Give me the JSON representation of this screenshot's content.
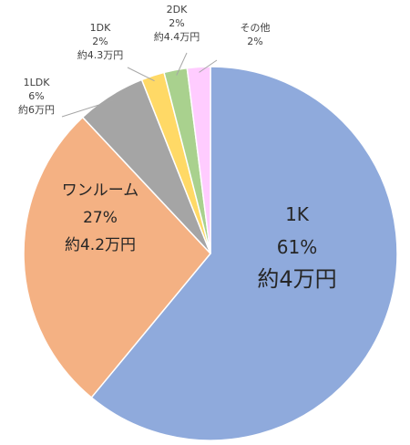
{
  "chart_data": {
    "type": "pie",
    "title": "",
    "legend": "none",
    "slices": [
      {
        "name": "1K",
        "percent_label": "61%",
        "price_label": "約4万円",
        "value": 61,
        "color": "#8FAADC"
      },
      {
        "name": "ワンルーム",
        "percent_label": "27%",
        "price_label": "約4.2万円",
        "value": 27,
        "color": "#F4B183"
      },
      {
        "name": "1LDK",
        "percent_label": "6%",
        "price_label": "約6万円",
        "value": 6,
        "color": "#A5A5A5"
      },
      {
        "name": "1DK",
        "percent_label": "2%",
        "price_label": "約4.3万円",
        "value": 2,
        "color": "#FFD966"
      },
      {
        "name": "2DK",
        "percent_label": "2%",
        "price_label": "約4.4万円",
        "value": 2,
        "color": "#A9D18E"
      },
      {
        "name": "その他",
        "percent_label": "2%",
        "price_label": "",
        "value": 2,
        "color": "#FFCCFF"
      }
    ]
  }
}
